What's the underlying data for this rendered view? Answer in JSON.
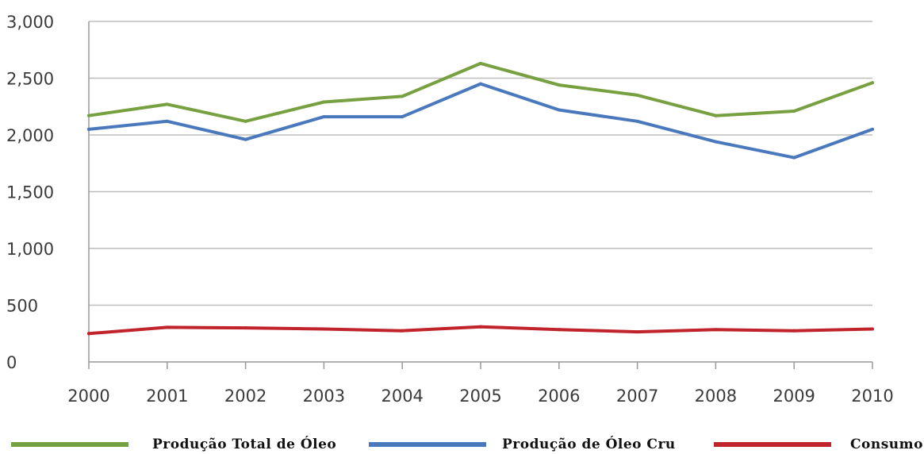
{
  "chart_data": {
    "type": "line",
    "title": "",
    "xlabel": "",
    "ylabel": "",
    "x": [
      "2000",
      "2001",
      "2002",
      "2003",
      "2004",
      "2005",
      "2006",
      "2007",
      "2008",
      "2009",
      "2010"
    ],
    "ylim": [
      0,
      3000
    ],
    "yticks": [
      0,
      500,
      1000,
      1500,
      2000,
      2500,
      3000
    ],
    "ytick_labels": [
      "0",
      "500",
      "1,000",
      "1,500",
      "2,000",
      "2,500",
      "3,000"
    ],
    "grid": true,
    "legend_position": "bottom",
    "series": [
      {
        "name": "Produção Total de Óleo",
        "color": "#77a041",
        "values": [
          2170,
          2270,
          2120,
          2290,
          2340,
          2630,
          2440,
          2350,
          2170,
          2210,
          2460
        ]
      },
      {
        "name": "Produção de Óleo Cru",
        "color": "#4a78bd",
        "values": [
          2050,
          2120,
          1960,
          2160,
          2160,
          2450,
          2220,
          2120,
          1940,
          1800,
          2050
        ]
      },
      {
        "name": "Consumo",
        "color": "#c0232a",
        "values": [
          250,
          305,
          300,
          290,
          275,
          310,
          285,
          265,
          285,
          275,
          290
        ]
      }
    ]
  }
}
